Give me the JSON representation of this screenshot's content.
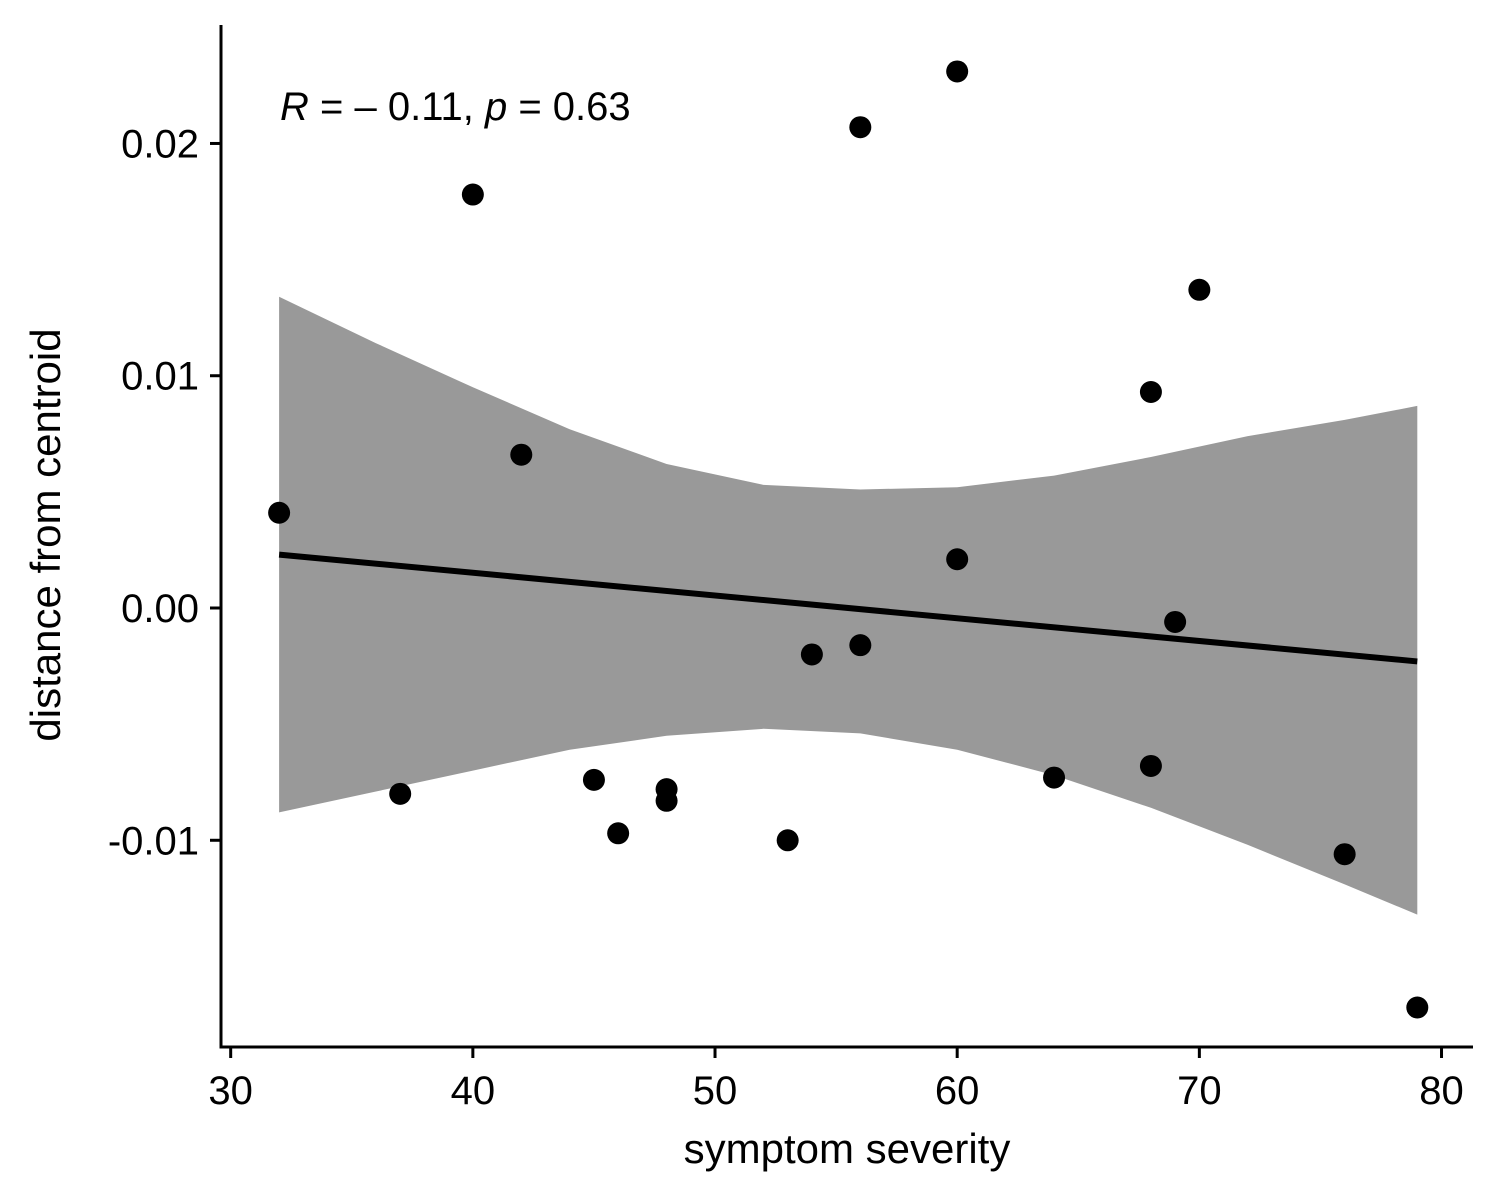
{
  "chart_data": {
    "type": "scatter",
    "xlabel": "symptom severity",
    "ylabel": "distance from centroid",
    "annotation": {
      "r_symbol": "R",
      "r_value": " = – 0.11, ",
      "p_symbol": "p",
      "p_value": " = 0.63"
    },
    "xlim": [
      29.6,
      81.3
    ],
    "ylim": [
      -0.0189,
      0.0251
    ],
    "x_ticks": [
      30,
      40,
      50,
      60,
      70,
      80
    ],
    "x_tick_labels": [
      "30",
      "40",
      "50",
      "60",
      "70",
      "80"
    ],
    "y_ticks": [
      -0.01,
      0.0,
      0.01,
      0.02
    ],
    "y_tick_labels": [
      "-0.01",
      "0.00",
      "0.01",
      "0.02"
    ],
    "grid": false,
    "legend": "none",
    "point_color": "#000000",
    "band_color": "#999999",
    "line_color": "#000000",
    "points": [
      {
        "x": 32,
        "y": 0.0041
      },
      {
        "x": 37,
        "y": -0.008
      },
      {
        "x": 40,
        "y": 0.0178
      },
      {
        "x": 42,
        "y": 0.0066
      },
      {
        "x": 45,
        "y": -0.0074
      },
      {
        "x": 46,
        "y": -0.0097
      },
      {
        "x": 48,
        "y": -0.0078
      },
      {
        "x": 48,
        "y": -0.0083
      },
      {
        "x": 53,
        "y": -0.01
      },
      {
        "x": 54,
        "y": -0.002
      },
      {
        "x": 56,
        "y": 0.0207
      },
      {
        "x": 56,
        "y": -0.0016
      },
      {
        "x": 60,
        "y": 0.0231
      },
      {
        "x": 60,
        "y": 0.0021
      },
      {
        "x": 64,
        "y": -0.0073
      },
      {
        "x": 68,
        "y": 0.0093
      },
      {
        "x": 68,
        "y": -0.0068
      },
      {
        "x": 69,
        "y": -0.0006
      },
      {
        "x": 70,
        "y": 0.0137
      },
      {
        "x": 76,
        "y": -0.0106
      },
      {
        "x": 79,
        "y": -0.0172
      }
    ],
    "fit_line": {
      "x": [
        32,
        79
      ],
      "y": [
        0.0023,
        -0.0023
      ]
    },
    "confidence_band": {
      "x": [
        32,
        36,
        40,
        44,
        48,
        52,
        56,
        60,
        64,
        68,
        72,
        76,
        79
      ],
      "lower": [
        -0.0088,
        -0.0079,
        -0.007,
        -0.0061,
        -0.0055,
        -0.0052,
        -0.0054,
        -0.0061,
        -0.0072,
        -0.0086,
        -0.0102,
        -0.0119,
        -0.0132
      ],
      "upper": [
        0.0134,
        0.0114,
        0.0095,
        0.0077,
        0.0062,
        0.0053,
        0.0051,
        0.0052,
        0.0057,
        0.0065,
        0.0074,
        0.0081,
        0.0087
      ]
    }
  }
}
